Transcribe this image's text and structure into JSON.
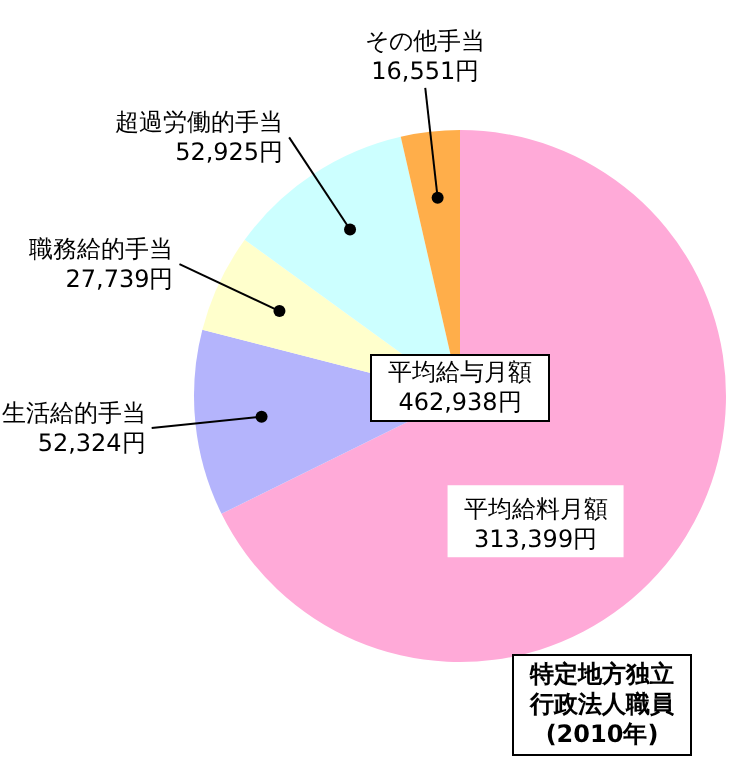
{
  "chart_data": {
    "type": "pie",
    "title": "特定地方独立行政法人職員(2010年)",
    "categories": [
      "平均給料月額",
      "生活給的手当",
      "職務給的手当",
      "超過労働的手当",
      "その他手当"
    ],
    "values": [
      313399,
      52324,
      27739,
      52925,
      16551
    ],
    "value_labels": [
      "313,399円",
      "52,324円",
      "27,739円",
      "52,925円",
      "16,551円"
    ],
    "colors": [
      "#ffaad8",
      "#b4b4fc",
      "#ffffcc",
      "#ccffff",
      "#ffae4a"
    ],
    "annotations": [
      "平均給与月額\n462,938円"
    ],
    "legend": false
  }
}
